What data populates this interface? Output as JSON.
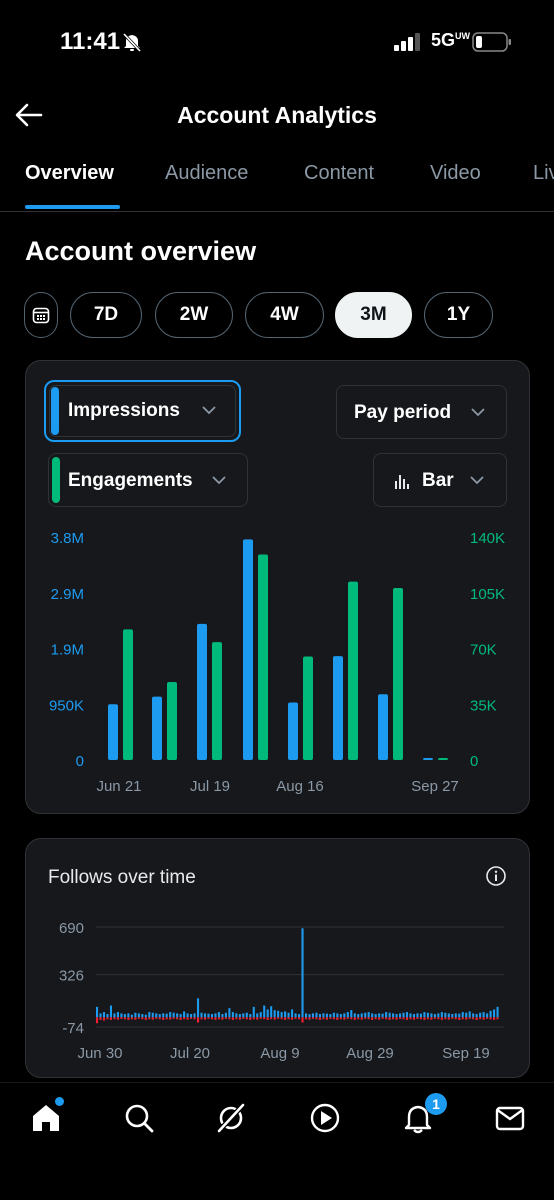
{
  "status": {
    "time": "11:41",
    "network": "5G",
    "network_sup": "UW"
  },
  "header": {
    "title": "Account Analytics"
  },
  "tabs": [
    "Overview",
    "Audience",
    "Content",
    "Video",
    "Live"
  ],
  "section_title": "Account overview",
  "ranges": [
    "7D",
    "2W",
    "4W",
    "3M",
    "1Y"
  ],
  "active_range": "3M",
  "card1": {
    "metric1": "Impressions",
    "metric2": "Engagements",
    "period": "Pay period",
    "chart_type_label": "Bar"
  },
  "card2": {
    "title": "Follows over time"
  },
  "nav": {
    "notifications_badge": "1"
  },
  "colors": {
    "blue": "#1d9bf0",
    "green": "#00ba7c",
    "red": "#f4212e",
    "card": "#16181c"
  },
  "chart_data": [
    {
      "type": "bar",
      "title": "",
      "x_tick_labels": [
        "Jun 21",
        "Jul 19",
        "Aug 16",
        "Sep 27"
      ],
      "y_left_ticks": [
        "3.8M",
        "2.9M",
        "1.9M",
        "950K",
        "0"
      ],
      "y_right_ticks": [
        "140K",
        "105K",
        "70K",
        "35K",
        "0"
      ],
      "y_left_lim": [
        0,
        3800000
      ],
      "y_right_lim": [
        0,
        140000
      ],
      "series": [
        {
          "name": "Impressions",
          "axis": "left",
          "color": "#1d9bf0",
          "values": [
            950000,
            1080000,
            2320000,
            3760000,
            980000,
            1770000,
            1120000,
            20000
          ]
        },
        {
          "name": "Engagements",
          "axis": "right",
          "color": "#00ba7c",
          "values": [
            82000,
            49000,
            74000,
            129000,
            65000,
            112000,
            108000,
            600
          ]
        }
      ]
    },
    {
      "type": "bar",
      "title": "Follows over time",
      "x_tick_labels": [
        "Jun 30",
        "Jul 20",
        "Aug 9",
        "Aug 29",
        "Sep 19"
      ],
      "y_ticks": [
        "690",
        "326",
        "-74"
      ],
      "ylim": [
        -74,
        690
      ],
      "series": [
        {
          "name": "Follows",
          "color": "#1d9bf0",
          "values": [
            80,
            30,
            40,
            25,
            90,
            30,
            40,
            30,
            25,
            30,
            20,
            35,
            30,
            25,
            20,
            40,
            35,
            30,
            25,
            30,
            28,
            40,
            35,
            30,
            25,
            45,
            30,
            25,
            30,
            145,
            35,
            30,
            28,
            25,
            30,
            40,
            25,
            35,
            70,
            40,
            30,
            25,
            30,
            35,
            25,
            80,
            30,
            40,
            90,
            60,
            85,
            55,
            50,
            40,
            45,
            35,
            60,
            30,
            25,
            680,
            30,
            25,
            30,
            35,
            25,
            30,
            28,
            25,
            35,
            30,
            25,
            30,
            40,
            55,
            30,
            25,
            30,
            35,
            40,
            30,
            25,
            30,
            28,
            40,
            35,
            30,
            25,
            30,
            35,
            40,
            30,
            25,
            30,
            28,
            40,
            35,
            30,
            25,
            30,
            40,
            35,
            30,
            25,
            30,
            28,
            40,
            35,
            45,
            30,
            25,
            35,
            40,
            30,
            50,
            60,
            80
          ]
        },
        {
          "name": "Unfollows",
          "color": "#f4212e",
          "values": [
            -45,
            -20,
            -25,
            -15,
            -20,
            -15,
            -18,
            -12,
            -15,
            -20,
            -15,
            -18,
            -12,
            -15,
            -20,
            -15,
            -18,
            -12,
            -15,
            -20,
            -15,
            -18,
            -12,
            -15,
            -20,
            -15,
            -18,
            -12,
            -15,
            -40,
            -15,
            -18,
            -12,
            -15,
            -20,
            -15,
            -18,
            -12,
            -15,
            -20,
            -15,
            -18,
            -12,
            -15,
            -20,
            -15,
            -18,
            -12,
            -15,
            -20,
            -15,
            -18,
            -12,
            -15,
            -20,
            -15,
            -18,
            -12,
            -15,
            -40,
            -15,
            -18,
            -12,
            -15,
            -20,
            -15,
            -18,
            -12,
            -15,
            -20,
            -15,
            -18,
            -12,
            -15,
            -20,
            -15,
            -18,
            -12,
            -15,
            -20,
            -15,
            -18,
            -12,
            -15,
            -20,
            -15,
            -18,
            -12,
            -15,
            -20,
            -15,
            -18,
            -12,
            -15,
            -20,
            -15,
            -18,
            -12,
            -15,
            -20,
            -15,
            -18,
            -12,
            -15,
            -20,
            -15,
            -18,
            -12,
            -15,
            -20,
            -15,
            -18,
            -12,
            -15,
            -20,
            -15
          ]
        }
      ]
    }
  ]
}
